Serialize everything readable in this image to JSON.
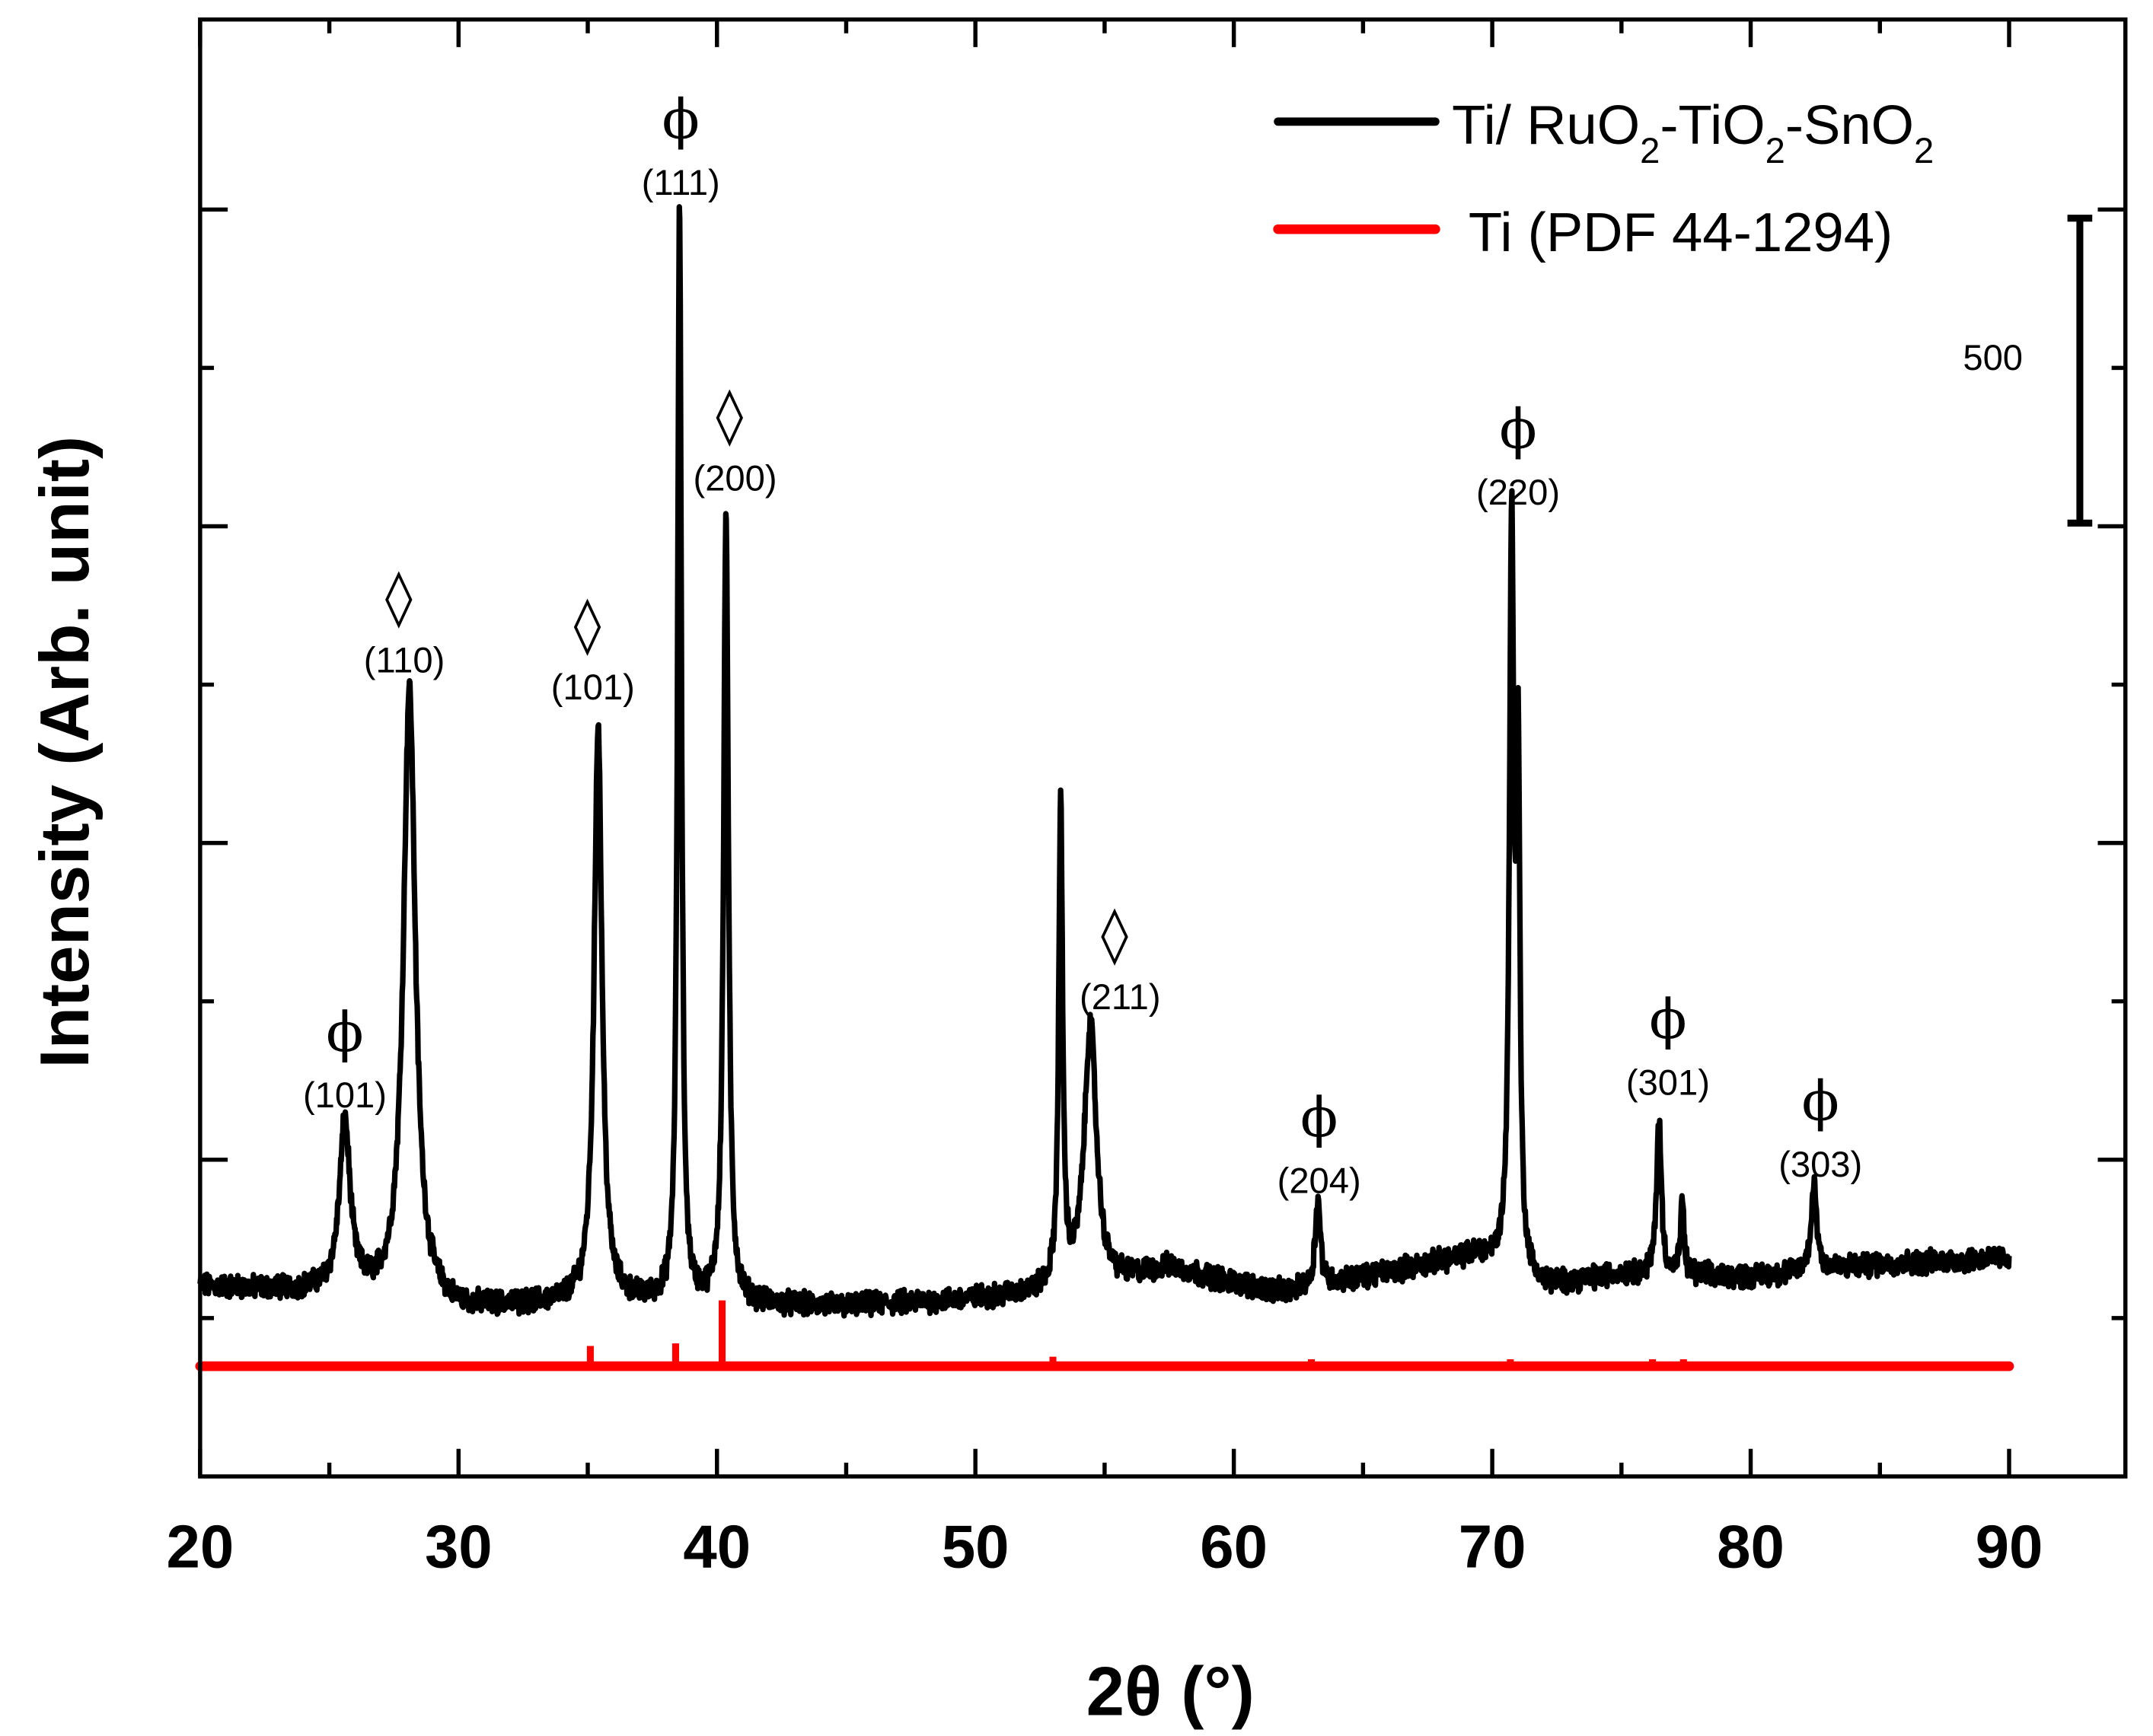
{
  "chart_data": {
    "type": "line",
    "title": "",
    "xlabel": "2θ (°)",
    "ylabel": "Intensity (Arb. unit)",
    "xlim": [
      20,
      94.5
    ],
    "ylim": [
      0,
      2300
    ],
    "x_ticks": [
      20,
      30,
      40,
      50,
      60,
      70,
      80,
      90
    ],
    "x_tick_labels": [
      "20",
      "30",
      "40",
      "50",
      "60",
      "70",
      "80",
      "90"
    ],
    "y_major_ticks": [
      500,
      1000,
      1500,
      2000
    ],
    "y_minor_ticks": [
      250,
      750,
      1250,
      1750
    ],
    "y_tick_labels_shown": false,
    "grid": false,
    "legend_position": "top-right",
    "scale_bar": {
      "label": "500",
      "value": 500,
      "y_from": 1500,
      "y_to": 2000
    },
    "series": [
      {
        "name": "Ti/ RuO2-TiO2-SnO2",
        "legend_parts": [
          "Ti/ RuO",
          "2",
          "-TiO",
          "2",
          "-SnO",
          "2"
        ],
        "color": "#000000",
        "x_range": [
          20,
          90
        ],
        "background": [
          [
            20,
            300
          ],
          [
            25,
            290
          ],
          [
            30,
            262
          ],
          [
            35,
            275
          ],
          [
            45,
            268
          ],
          [
            50,
            280
          ],
          [
            55,
            300
          ],
          [
            57.5,
            330
          ],
          [
            60,
            305
          ],
          [
            62,
            290
          ],
          [
            65,
            315
          ],
          [
            67.5,
            335
          ],
          [
            69.5,
            350
          ],
          [
            72,
            300
          ],
          [
            75,
            320
          ],
          [
            80,
            315
          ],
          [
            85,
            335
          ],
          [
            90,
            345
          ]
        ],
        "peaks": [
          {
            "x": 25.6,
            "y": 554,
            "w": 0.25
          },
          {
            "x": 28.1,
            "y": 1243,
            "w": 0.28
          },
          {
            "x": 35.4,
            "y": 1187,
            "w": 0.18
          },
          {
            "x": 38.55,
            "y": 2000,
            "w": 0.09
          },
          {
            "x": 40.35,
            "y": 1522,
            "w": 0.11
          },
          {
            "x": 53.3,
            "y": 1048,
            "w": 0.09
          },
          {
            "x": 54.45,
            "y": 713,
            "w": 0.28
          },
          {
            "x": 63.25,
            "y": 439,
            "w": 0.12
          },
          {
            "x": 70.75,
            "y": 1478,
            "w": 0.1
          },
          {
            "x": 71.0,
            "y": 1100,
            "w": 0.08
          },
          {
            "x": 76.45,
            "y": 561,
            "w": 0.11
          },
          {
            "x": 77.35,
            "y": 430,
            "w": 0.08
          },
          {
            "x": 82.45,
            "y": 463,
            "w": 0.13
          }
        ],
        "noise_amplitude": 22
      },
      {
        "name": "Ti (PDF 44-1294)",
        "color": "#ff0000",
        "baseline": 174,
        "x_range": [
          20,
          90
        ],
        "sticks": [
          {
            "x": 35.1,
            "y": 32
          },
          {
            "x": 38.4,
            "y": 36
          },
          {
            "x": 40.2,
            "y": 104
          },
          {
            "x": 53.0,
            "y": 15
          },
          {
            "x": 63.0,
            "y": 11
          },
          {
            "x": 70.7,
            "y": 11
          },
          {
            "x": 76.2,
            "y": 11
          },
          {
            "x": 77.4,
            "y": 11
          },
          {
            "x": 82.3,
            "y": 5
          },
          {
            "x": 86.8,
            "y": 4
          }
        ]
      }
    ],
    "annotations": [
      {
        "symbol": "ϕ",
        "label": "(101)",
        "x": 25.6,
        "y": 602
      },
      {
        "symbol": "◊",
        "label": "(110)",
        "x": 27.9,
        "y": 1289
      },
      {
        "symbol": "◊",
        "label": "(101)",
        "x": 35.2,
        "y": 1246
      },
      {
        "symbol": "ϕ",
        "label": "(111)",
        "x": 38.6,
        "y": 2043
      },
      {
        "symbol": "◊",
        "label": "(200)",
        "x": 40.7,
        "y": 1576
      },
      {
        "symbol": "◊",
        "label": "(211)",
        "x": 55.6,
        "y": 757
      },
      {
        "symbol": "ϕ",
        "label": "(204)",
        "x": 63.3,
        "y": 467
      },
      {
        "symbol": "ϕ",
        "label": "(220)",
        "x": 71.0,
        "y": 1554
      },
      {
        "symbol": "ϕ",
        "label": "(301)",
        "x": 76.8,
        "y": 622
      },
      {
        "symbol": "ϕ",
        "label": "(303)",
        "x": 82.7,
        "y": 493
      }
    ]
  }
}
